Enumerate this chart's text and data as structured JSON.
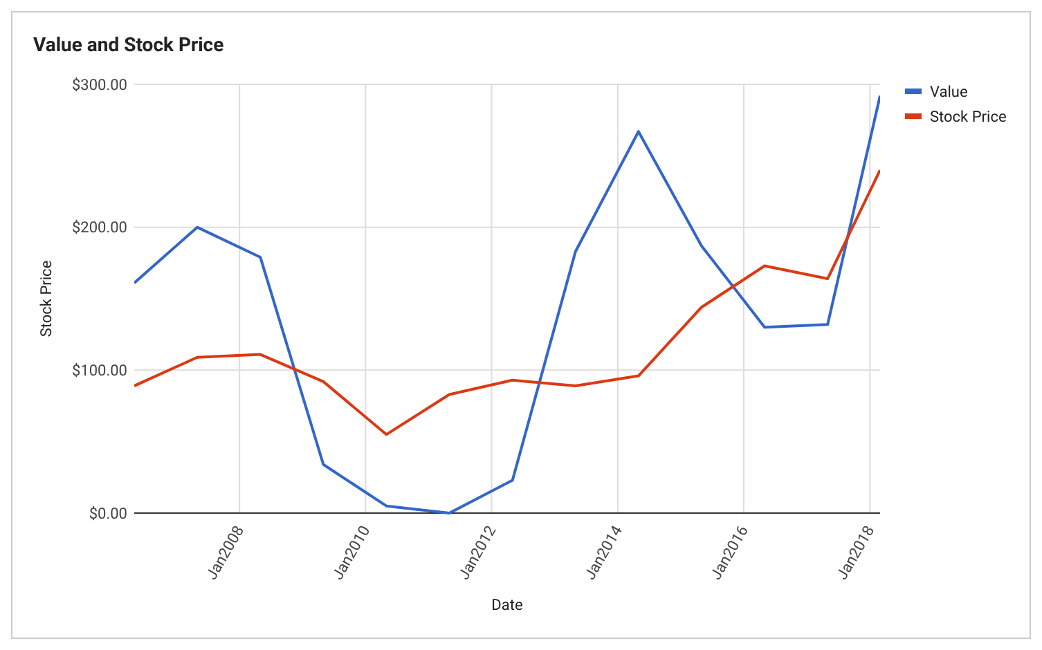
{
  "chart_data": {
    "type": "line",
    "title": "Value and Stock Price",
    "xlabel": "Date",
    "ylabel": "Stock Price",
    "x": [
      "2006-05",
      "2007-05",
      "2008-05",
      "2009-05",
      "2010-05",
      "2011-05",
      "2012-05",
      "2013-05",
      "2014-05",
      "2015-05",
      "2016-05",
      "2017-05",
      "2018-03"
    ],
    "series": [
      {
        "name": "Value",
        "color": "#3366cc",
        "values": [
          161,
          200,
          179,
          34,
          5,
          0,
          23,
          183,
          267,
          187,
          130,
          132,
          292
        ]
      },
      {
        "name": "Stock Price",
        "color": "#dc3912",
        "values": [
          89,
          109,
          111,
          92,
          55,
          83,
          93,
          89,
          96,
          144,
          173,
          164,
          240
        ]
      }
    ],
    "xlim": [
      "2006-05",
      "2018-03"
    ],
    "xticks": [
      {
        "value": "2008-01",
        "label": "Jan2008"
      },
      {
        "value": "2010-01",
        "label": "Jan2010"
      },
      {
        "value": "2012-01",
        "label": "Jan2012"
      },
      {
        "value": "2014-01",
        "label": "Jan2014"
      },
      {
        "value": "2016-01",
        "label": "Jan2016"
      },
      {
        "value": "2018-01",
        "label": "Jan2018"
      }
    ],
    "ylim": [
      0,
      300
    ],
    "yticks": [
      {
        "value": 0,
        "label": "$0.00"
      },
      {
        "value": 100,
        "label": "$100.00"
      },
      {
        "value": 200,
        "label": "$200.00"
      },
      {
        "value": 300,
        "label": "$300.00"
      }
    ],
    "grid": true,
    "legend": "top right",
    "marker": "none",
    "line_style": "solid"
  }
}
